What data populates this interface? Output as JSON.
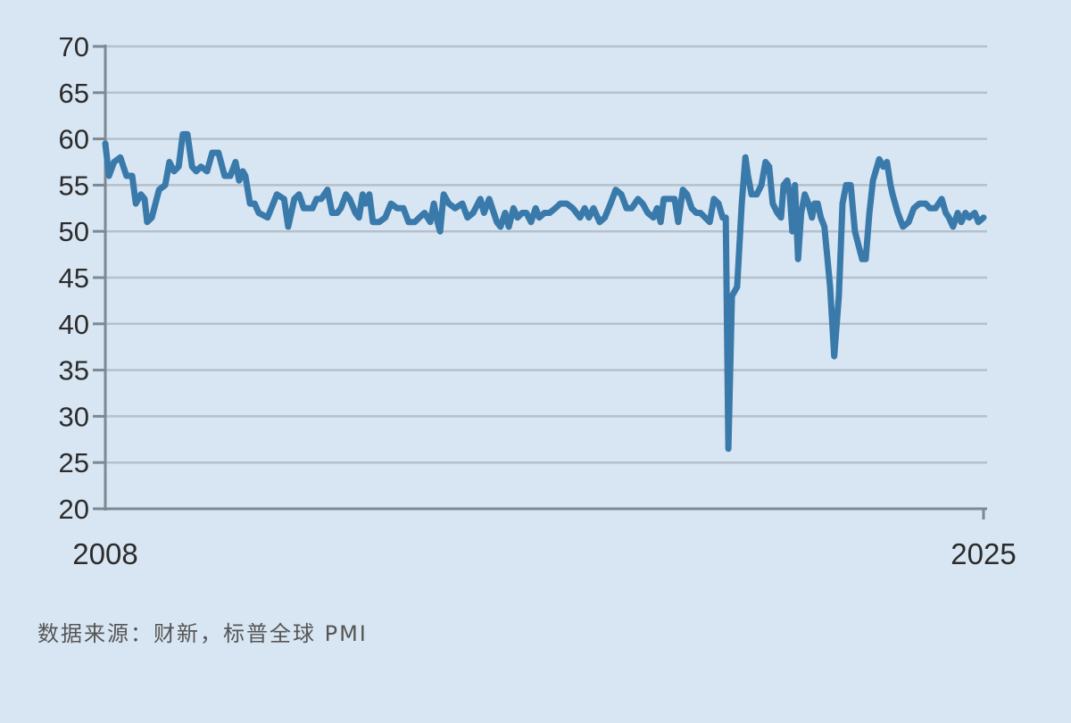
{
  "chart_data": {
    "type": "line",
    "title": "",
    "xlabel": "",
    "ylabel": "",
    "ylim": [
      20,
      70
    ],
    "yticks": [
      "20",
      "25",
      "30",
      "35",
      "40",
      "45",
      "50",
      "55",
      "60",
      "65",
      "70"
    ],
    "xlim": [
      2008,
      2025
    ],
    "xticks": [
      "2008",
      "2025"
    ],
    "grid": true,
    "line_color": "#3a7aab",
    "series": [
      {
        "points": [
          [
            2008.0,
            59.5
          ],
          [
            2008.07,
            56
          ],
          [
            2008.17,
            57.5
          ],
          [
            2008.29,
            58
          ],
          [
            2008.41,
            56
          ],
          [
            2008.52,
            56
          ],
          [
            2008.59,
            53
          ],
          [
            2008.69,
            54
          ],
          [
            2008.76,
            53.5
          ],
          [
            2008.81,
            51
          ],
          [
            2008.9,
            51.5
          ],
          [
            2009.04,
            54.5
          ],
          [
            2009.16,
            55
          ],
          [
            2009.24,
            57.5
          ],
          [
            2009.33,
            56.5
          ],
          [
            2009.42,
            57
          ],
          [
            2009.5,
            60.5
          ],
          [
            2009.59,
            60.5
          ],
          [
            2009.68,
            57
          ],
          [
            2009.76,
            56.5
          ],
          [
            2009.85,
            57
          ],
          [
            2009.97,
            56.5
          ],
          [
            2010.07,
            58.5
          ],
          [
            2010.19,
            58.5
          ],
          [
            2010.31,
            56
          ],
          [
            2010.42,
            56
          ],
          [
            2010.52,
            57.5
          ],
          [
            2010.59,
            55.5
          ],
          [
            2010.66,
            56.5
          ],
          [
            2010.71,
            56
          ],
          [
            2010.8,
            53
          ],
          [
            2010.89,
            53
          ],
          [
            2010.97,
            52
          ],
          [
            2011.14,
            51.5
          ],
          [
            2011.32,
            54
          ],
          [
            2011.46,
            53.5
          ],
          [
            2011.54,
            50.5
          ],
          [
            2011.66,
            53.5
          ],
          [
            2011.75,
            54
          ],
          [
            2011.84,
            52.5
          ],
          [
            2012.01,
            52.5
          ],
          [
            2012.09,
            53.5
          ],
          [
            2012.18,
            53.5
          ],
          [
            2012.3,
            54.5
          ],
          [
            2012.39,
            52
          ],
          [
            2012.49,
            52
          ],
          [
            2012.56,
            52.5
          ],
          [
            2012.66,
            54
          ],
          [
            2012.73,
            53.5
          ],
          [
            2012.84,
            52
          ],
          [
            2012.91,
            51.5
          ],
          [
            2012.98,
            54
          ],
          [
            2013.04,
            53
          ],
          [
            2013.11,
            54
          ],
          [
            2013.18,
            51
          ],
          [
            2013.3,
            51
          ],
          [
            2013.42,
            51.5
          ],
          [
            2013.53,
            53
          ],
          [
            2013.65,
            52.5
          ],
          [
            2013.77,
            52.5
          ],
          [
            2013.87,
            51
          ],
          [
            2013.99,
            51
          ],
          [
            2014.08,
            51.5
          ],
          [
            2014.18,
            52
          ],
          [
            2014.29,
            51
          ],
          [
            2014.36,
            53
          ],
          [
            2014.43,
            51
          ],
          [
            2014.48,
            50
          ],
          [
            2014.55,
            54
          ],
          [
            2014.65,
            53
          ],
          [
            2014.77,
            52.5
          ],
          [
            2014.91,
            53
          ],
          [
            2015.01,
            51.5
          ],
          [
            2015.12,
            52
          ],
          [
            2015.26,
            53.5
          ],
          [
            2015.33,
            52
          ],
          [
            2015.43,
            53.5
          ],
          [
            2015.52,
            52
          ],
          [
            2015.58,
            51
          ],
          [
            2015.65,
            50.5
          ],
          [
            2015.74,
            52
          ],
          [
            2015.81,
            50.5
          ],
          [
            2015.9,
            52.5
          ],
          [
            2015.98,
            51.5
          ],
          [
            2016.07,
            52
          ],
          [
            2016.15,
            52
          ],
          [
            2016.24,
            51
          ],
          [
            2016.33,
            52.5
          ],
          [
            2016.4,
            51.5
          ],
          [
            2016.5,
            52
          ],
          [
            2016.6,
            52
          ],
          [
            2016.71,
            52.5
          ],
          [
            2016.81,
            53
          ],
          [
            2016.93,
            53
          ],
          [
            2017.05,
            52.5
          ],
          [
            2017.19,
            51.5
          ],
          [
            2017.28,
            52.5
          ],
          [
            2017.36,
            51.5
          ],
          [
            2017.45,
            52.5
          ],
          [
            2017.57,
            51
          ],
          [
            2017.67,
            51.5
          ],
          [
            2017.78,
            53
          ],
          [
            2017.88,
            54.5
          ],
          [
            2017.99,
            54
          ],
          [
            2018.09,
            52.5
          ],
          [
            2018.19,
            52.5
          ],
          [
            2018.31,
            53.5
          ],
          [
            2018.4,
            53
          ],
          [
            2018.5,
            52
          ],
          [
            2018.61,
            51.5
          ],
          [
            2018.68,
            52.5
          ],
          [
            2018.75,
            51
          ],
          [
            2018.81,
            53.5
          ],
          [
            2018.92,
            53.5
          ],
          [
            2019.02,
            53.5
          ],
          [
            2019.09,
            51
          ],
          [
            2019.18,
            54.5
          ],
          [
            2019.26,
            54
          ],
          [
            2019.35,
            52.5
          ],
          [
            2019.44,
            52
          ],
          [
            2019.52,
            52
          ],
          [
            2019.61,
            51.5
          ],
          [
            2019.7,
            51
          ],
          [
            2019.78,
            53.5
          ],
          [
            2019.87,
            53
          ],
          [
            2019.95,
            51.5
          ],
          [
            2020.01,
            51.5
          ],
          [
            2020.06,
            26.5
          ],
          [
            2020.13,
            43
          ],
          [
            2020.23,
            44
          ],
          [
            2020.32,
            53
          ],
          [
            2020.39,
            58
          ],
          [
            2020.44,
            56
          ],
          [
            2020.51,
            54
          ],
          [
            2020.61,
            54
          ],
          [
            2020.7,
            55
          ],
          [
            2020.78,
            57.5
          ],
          [
            2020.85,
            57
          ],
          [
            2020.92,
            53
          ],
          [
            2021.01,
            52
          ],
          [
            2021.08,
            51.5
          ],
          [
            2021.13,
            55
          ],
          [
            2021.2,
            55.5
          ],
          [
            2021.25,
            54
          ],
          [
            2021.3,
            50
          ],
          [
            2021.35,
            55
          ],
          [
            2021.41,
            47
          ],
          [
            2021.47,
            52
          ],
          [
            2021.54,
            54
          ],
          [
            2021.61,
            53
          ],
          [
            2021.68,
            51.5
          ],
          [
            2021.73,
            53
          ],
          [
            2021.79,
            53
          ],
          [
            2021.85,
            51.5
          ],
          [
            2021.92,
            50.5
          ],
          [
            2022.03,
            44
          ],
          [
            2022.11,
            36.5
          ],
          [
            2022.2,
            43
          ],
          [
            2022.27,
            53
          ],
          [
            2022.34,
            55
          ],
          [
            2022.43,
            55
          ],
          [
            2022.51,
            50
          ],
          [
            2022.58,
            48.5
          ],
          [
            2022.65,
            47
          ],
          [
            2022.72,
            47
          ],
          [
            2022.79,
            52
          ],
          [
            2022.86,
            55.5
          ],
          [
            2022.98,
            57.8
          ],
          [
            2023.06,
            57
          ],
          [
            2023.13,
            57.5
          ],
          [
            2023.2,
            55
          ],
          [
            2023.24,
            54
          ],
          [
            2023.34,
            52
          ],
          [
            2023.44,
            50.5
          ],
          [
            2023.55,
            51
          ],
          [
            2023.65,
            52.5
          ],
          [
            2023.76,
            53
          ],
          [
            2023.88,
            53
          ],
          [
            2023.96,
            52.5
          ],
          [
            2024.07,
            52.5
          ],
          [
            2024.19,
            53.5
          ],
          [
            2024.27,
            52
          ],
          [
            2024.33,
            51.5
          ],
          [
            2024.41,
            50.5
          ],
          [
            2024.5,
            52
          ],
          [
            2024.57,
            51
          ],
          [
            2024.65,
            52
          ],
          [
            2024.72,
            51.5
          ],
          [
            2024.83,
            52
          ],
          [
            2024.9,
            51
          ],
          [
            2025.0,
            51.5
          ]
        ]
      }
    ]
  },
  "source_note": "数据来源：财新，标普全球 PMI"
}
